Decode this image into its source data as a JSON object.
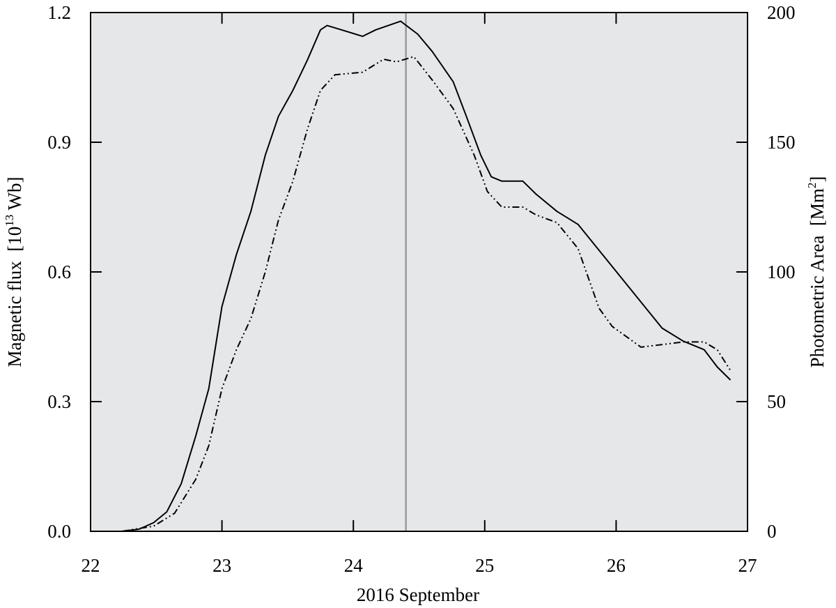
{
  "chart_data": {
    "type": "line",
    "xlabel": "2016 September",
    "ylabel": {
      "text": "Magnetic flux  [10",
      "sup": "13",
      "tail": " Wb]"
    },
    "y2label": {
      "text": "Photometric Area  [Mm",
      "sup": "2",
      "tail": "]"
    },
    "xlim": [
      22,
      27
    ],
    "xticks": [
      22,
      23,
      24,
      25,
      26,
      27
    ],
    "ylim": [
      0,
      1.2
    ],
    "yticks": [
      {
        "value": 0,
        "label": "0.0"
      },
      0.3,
      0.6,
      0.9,
      1.2
    ],
    "y2lim": [
      0,
      200
    ],
    "y2ticks": [
      0,
      50,
      100,
      150,
      200
    ],
    "background": "#e6e7e9",
    "vline": {
      "x": 24.4,
      "color": "#999999"
    },
    "series": [
      {
        "color": "#000000",
        "style": "solid",
        "x": [
          22.24,
          22.37,
          22.48,
          22.58,
          22.69,
          22.8,
          22.9,
          23.0,
          23.11,
          23.22,
          23.33,
          23.43,
          23.54,
          23.65,
          23.75,
          23.8,
          23.91,
          24.07,
          24.17,
          24.36,
          24.49,
          24.6,
          24.76,
          24.86,
          24.97,
          25.05,
          25.13,
          25.29,
          25.39,
          25.55,
          25.71,
          25.87,
          26.03,
          26.19,
          26.35,
          26.51,
          26.67,
          26.77,
          26.87
        ],
        "values": [
          0,
          0.005,
          0.02,
          0.045,
          0.11,
          0.22,
          0.33,
          0.52,
          0.64,
          0.74,
          0.87,
          0.96,
          1.02,
          1.09,
          1.16,
          1.17,
          1.16,
          1.145,
          1.16,
          1.18,
          1.15,
          1.11,
          1.04,
          0.96,
          0.87,
          0.82,
          0.81,
          0.81,
          0.78,
          0.74,
          0.71,
          0.65,
          0.59,
          0.53,
          0.47,
          0.44,
          0.42,
          0.38,
          0.35
        ]
      },
      {
        "color": "#000000",
        "style": "dash-dot-dot",
        "axis": "y2",
        "x": [
          22.24,
          22.48,
          22.64,
          22.8,
          22.9,
          23.0,
          23.11,
          23.22,
          23.33,
          23.43,
          23.54,
          23.65,
          23.75,
          23.86,
          24.07,
          24.23,
          24.33,
          24.46,
          24.6,
          24.76,
          24.92,
          25.02,
          25.13,
          25.29,
          25.39,
          25.55,
          25.71,
          25.87,
          25.97,
          26.19,
          26.51,
          26.67,
          26.77,
          26.87
        ],
        "values": [
          0,
          2,
          7,
          20,
          33,
          55,
          70,
          82,
          100,
          120,
          135,
          155,
          170,
          176,
          177,
          182,
          181,
          183,
          174,
          163,
          145,
          131,
          125,
          125,
          122,
          119,
          109,
          86,
          79,
          71,
          73,
          73,
          70,
          62
        ]
      }
    ]
  }
}
